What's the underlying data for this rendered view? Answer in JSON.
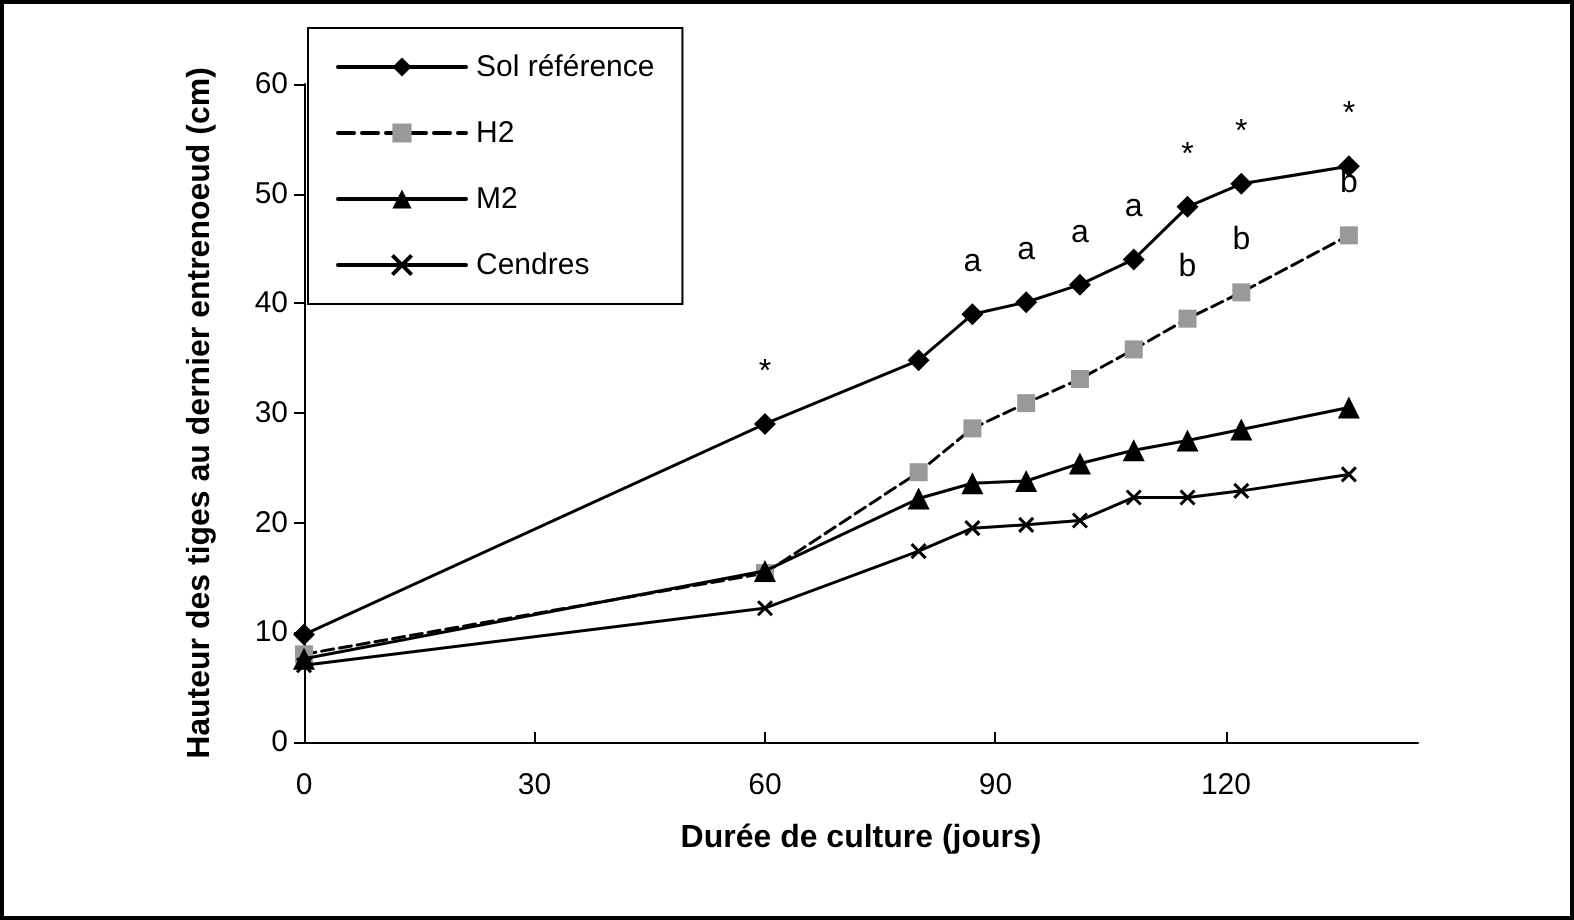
{
  "chart_data": {
    "type": "line",
    "xlabel": "Durée de culture (jours)",
    "ylabel": "Hauteur des tiges au dernier entrenoeud (cm)",
    "xlim": [
      0,
      145
    ],
    "xticks": [
      0,
      30,
      60,
      90,
      120
    ],
    "ylim": [
      0,
      60
    ],
    "yticks": [
      0,
      10,
      20,
      30,
      40,
      50,
      60
    ],
    "grid": false,
    "legend": "top left",
    "x": [
      0,
      60,
      80,
      87,
      94,
      101,
      108,
      115,
      122,
      136
    ],
    "series": [
      {
        "name": "Sol référence",
        "color": "#000000",
        "marker": "diamond",
        "line_style": "solid",
        "values": [
          9.8,
          29.0,
          34.8,
          39.0,
          40.1,
          41.7,
          44.0,
          48.8,
          50.9,
          52.5
        ]
      },
      {
        "name": "H2",
        "color": "#999999",
        "marker": "square",
        "line_style": "dashed",
        "values": [
          8.0,
          15.4,
          24.6,
          28.6,
          30.9,
          33.1,
          35.8,
          38.6,
          41.0,
          46.2
        ]
      },
      {
        "name": "M2",
        "color": "#000000",
        "marker": "triangle",
        "line_style": "solid",
        "values": [
          7.6,
          15.6,
          22.2,
          23.6,
          23.8,
          25.4,
          26.6,
          27.5,
          28.5,
          30.5
        ]
      },
      {
        "name": "Cendres",
        "color": "#000000",
        "marker": "cross",
        "line_style": "solid",
        "values": [
          7.0,
          12.2,
          17.4,
          19.5,
          19.8,
          20.2,
          22.3,
          22.3,
          22.9,
          24.4
        ]
      }
    ],
    "annotations": [
      {
        "text": "*",
        "x": 60,
        "y": 29.0
      },
      {
        "text": "a",
        "x": 87,
        "y": 39.0
      },
      {
        "text": "a",
        "x": 94,
        "y": 40.1
      },
      {
        "text": "a",
        "x": 101,
        "y": 41.7
      },
      {
        "text": "a",
        "x": 108,
        "y": 44.0
      },
      {
        "text": "b",
        "x": 115,
        "y": 38.6
      },
      {
        "text": "b",
        "x": 122,
        "y": 41.0
      },
      {
        "text": "b",
        "x": 136,
        "y": 46.2
      },
      {
        "text": "*",
        "x": 115,
        "y": 48.8
      },
      {
        "text": "*",
        "x": 122,
        "y": 50.9
      },
      {
        "text": "*",
        "x": 136,
        "y": 52.5
      }
    ]
  }
}
